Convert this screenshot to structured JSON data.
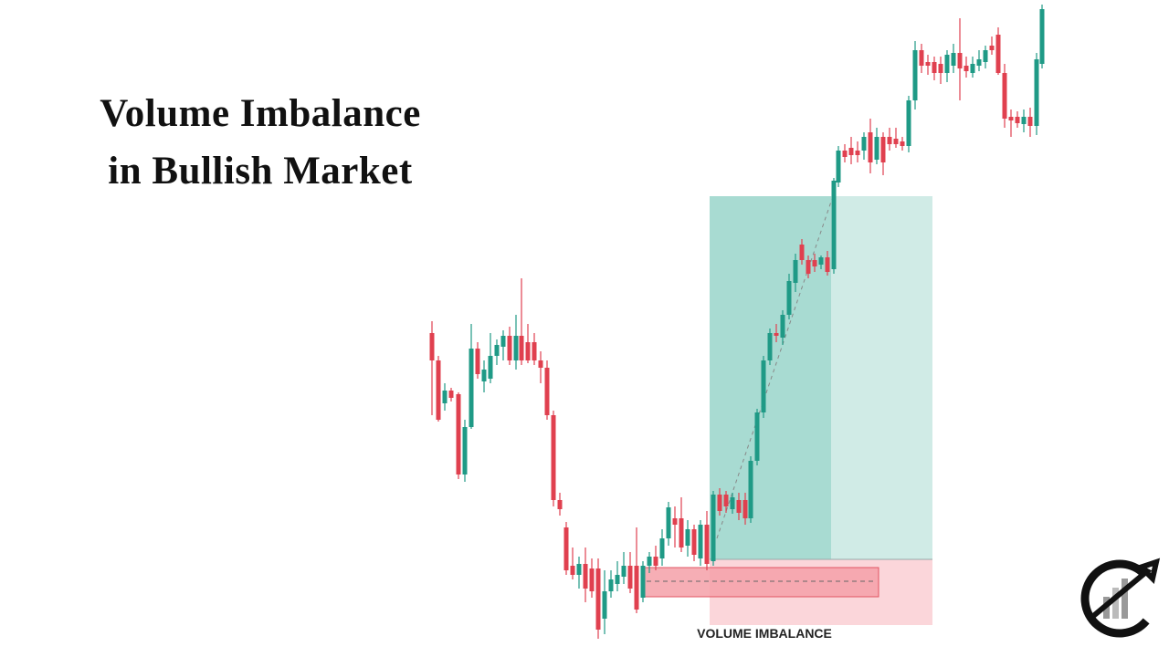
{
  "header": {
    "title_lines": [
      "Volume Imbalance",
      "in Bullish Market"
    ]
  },
  "annotation": {
    "label": "VOLUME IMBALANCE"
  }
}
